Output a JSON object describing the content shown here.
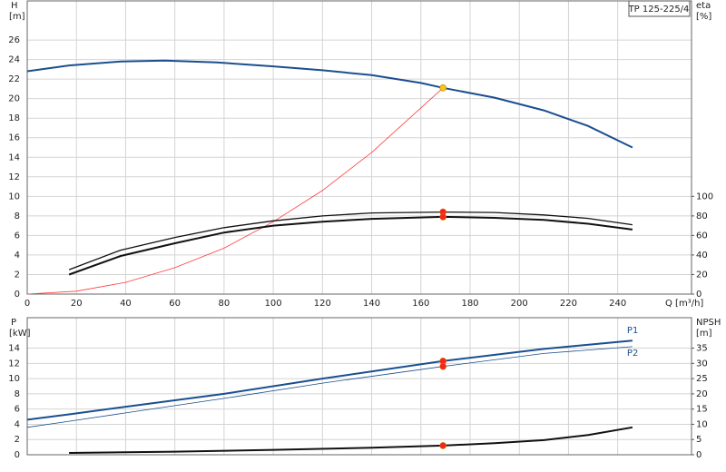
{
  "product_label": "TP 125-225/4",
  "chart_data": [
    {
      "type": "line",
      "ylabel": "H",
      "yunit": "[m]",
      "y2label": "eta",
      "y2unit": "[%]",
      "xlabel": "Q [m³/h]",
      "xlim": [
        0,
        270
      ],
      "xticks": [
        0,
        20,
        40,
        60,
        80,
        100,
        120,
        140,
        160,
        180,
        200,
        220,
        240
      ],
      "xtick_labels": true,
      "ylim": [
        0,
        30
      ],
      "yticks": [
        0,
        2,
        4,
        6,
        8,
        10,
        12,
        14,
        16,
        18,
        20,
        22,
        24,
        26
      ],
      "y2lim": [
        0,
        300
      ],
      "y2ticks": [
        0,
        20,
        40,
        60,
        80,
        100
      ],
      "grid": true,
      "series": [
        {
          "color": "#1a4f8f",
          "weight": "heavy",
          "axis": "y",
          "x": [
            0,
            17,
            38,
            56,
            77,
            100,
            120,
            140,
            160,
            169,
            190,
            210,
            228,
            246
          ],
          "values": [
            22.8,
            23.4,
            23.8,
            23.9,
            23.7,
            23.3,
            22.9,
            22.4,
            21.6,
            21.1,
            20.1,
            18.8,
            17.2,
            15.0
          ]
        },
        {
          "color": "#ff3b3b",
          "weight": "light",
          "axis": "y",
          "x": [
            0,
            20,
            40,
            60,
            80,
            100,
            120,
            140,
            169
          ],
          "values": [
            0,
            0.3,
            1.2,
            2.7,
            4.7,
            7.4,
            10.6,
            14.5,
            21.1
          ]
        },
        {
          "color": "#111111",
          "weight": "normal",
          "axis": "y2",
          "x": [
            17,
            38,
            60,
            80,
            100,
            120,
            140,
            169,
            190,
            210,
            228,
            246
          ],
          "values": [
            25,
            45,
            58,
            68,
            75,
            80,
            83,
            84,
            83.5,
            81,
            77.5,
            71
          ]
        },
        {
          "color": "#111111",
          "weight": "heavy",
          "axis": "y2",
          "x": [
            17,
            38,
            60,
            80,
            100,
            120,
            140,
            169,
            190,
            210,
            228,
            246
          ],
          "values": [
            20,
            39,
            52,
            63,
            70,
            74,
            77,
            79,
            78,
            76,
            72,
            66
          ]
        }
      ],
      "points": [
        {
          "x": 169,
          "y": 21.1,
          "axis": "y",
          "color": "#f5c518"
        },
        {
          "x": 169,
          "y": 84,
          "axis": "y2",
          "color": "#ff2020"
        },
        {
          "x": 169,
          "y": 79,
          "axis": "y2",
          "color": "#ff2020"
        }
      ]
    },
    {
      "type": "line",
      "ylabel": "P",
      "yunit": "[kW]",
      "y2label": "NPSH",
      "y2unit": "[m]",
      "xlim": [
        0,
        270
      ],
      "xticks": [
        0,
        20,
        40,
        60,
        80,
        100,
        120,
        140,
        160,
        180,
        200,
        220,
        240
      ],
      "xtick_labels": false,
      "ylim": [
        0,
        18
      ],
      "yticks": [
        0,
        2,
        4,
        6,
        8,
        10,
        12,
        14
      ],
      "y2lim": [
        0,
        45
      ],
      "y2ticks": [
        0,
        5,
        10,
        15,
        20,
        25,
        30,
        35
      ],
      "grid": true,
      "series": [
        {
          "name": "P1",
          "label_side": "above",
          "color": "#1a4f8f",
          "weight": "heavy",
          "axis": "y",
          "x": [
            0,
            17,
            40,
            80,
            120,
            169,
            210,
            246
          ],
          "values": [
            4.6,
            5.3,
            6.3,
            8.0,
            10.0,
            12.3,
            13.9,
            15.0
          ]
        },
        {
          "name": "P2",
          "label_side": "below",
          "color": "#1a4f8f",
          "weight": "light",
          "axis": "y",
          "x": [
            0,
            17,
            40,
            80,
            120,
            169,
            210,
            246
          ],
          "values": [
            3.6,
            4.4,
            5.5,
            7.4,
            9.4,
            11.6,
            13.3,
            14.2
          ]
        },
        {
          "color": "#111111",
          "weight": "heavy",
          "axis": "y2",
          "x": [
            17,
            60,
            100,
            140,
            169,
            190,
            210,
            228,
            246
          ],
          "values": [
            0.6,
            1.0,
            1.6,
            2.3,
            3.0,
            3.8,
            4.8,
            6.5,
            9.0
          ]
        }
      ],
      "points": [
        {
          "x": 169,
          "y": 12.3,
          "axis": "y",
          "color": "#ff2020"
        },
        {
          "x": 169,
          "y": 11.6,
          "axis": "y",
          "color": "#ff2020"
        },
        {
          "x": 169,
          "y": 3.0,
          "axis": "y2",
          "color": "#ff2020"
        }
      ]
    }
  ]
}
